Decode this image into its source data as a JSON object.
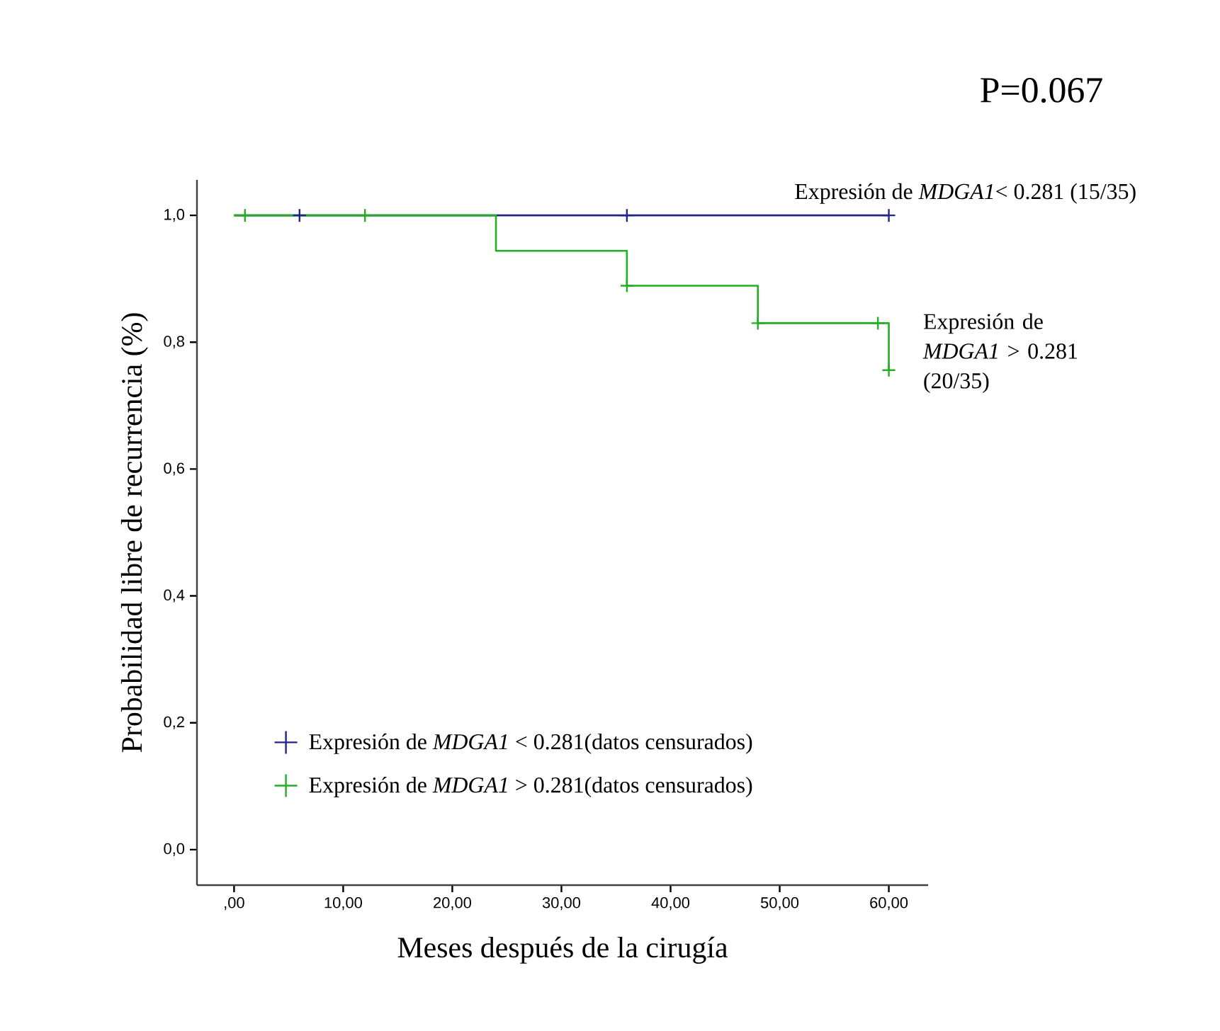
{
  "chart_data": {
    "type": "step",
    "title": "P=0.067",
    "xlabel": "Meses después de la cirugía",
    "ylabel": "Probabilidad libre de recurrencia (%)",
    "xlim": [
      -3.4,
      63.6
    ],
    "ylim": [
      -0.056,
      1.056
    ],
    "xticks": [
      {
        "value": 0,
        "label": ",00"
      },
      {
        "value": 10,
        "label": "10,00"
      },
      {
        "value": 20,
        "label": "20,00"
      },
      {
        "value": 30,
        "label": "30,00"
      },
      {
        "value": 40,
        "label": "40,00"
      },
      {
        "value": 50,
        "label": "50,00"
      },
      {
        "value": 60,
        "label": "60,00"
      }
    ],
    "yticks": [
      {
        "value": 0,
        "label": "0,0"
      },
      {
        "value": 0.2,
        "label": "0,2"
      },
      {
        "value": 0.4,
        "label": "0,4"
      },
      {
        "value": 0.6,
        "label": "0,6"
      },
      {
        "value": 0.8,
        "label": "0,8"
      },
      {
        "value": 1,
        "label": "1,0"
      }
    ],
    "legend": "bottom left",
    "line_style": "solid",
    "series": [
      {
        "name": "Expresión de *MDGA1*< 0.281 (15/35)",
        "color": "#23238e",
        "x": [
          0,
          60
        ],
        "values": [
          1,
          1
        ]
      },
      {
        "name": "Expresión de *MDGA1* > 0.281 (20/35)",
        "color": "#22b022",
        "x": [
          0,
          24,
          36,
          48,
          60
        ],
        "values": [
          1,
          0.944,
          0.889,
          0.83,
          0.756
        ]
      },
      {
        "type": "scatter",
        "marker": "cross",
        "name": "Expresión de *MDGA1* < 0.281(datos censurados)",
        "color": "#23238e",
        "x": [
          6,
          36,
          60
        ],
        "values": [
          1,
          1,
          1
        ]
      },
      {
        "type": "scatter",
        "marker": "cross",
        "name": "Expresión de *MDGA1* > 0.281(datos censurados)",
        "color": "#22b022",
        "x": [
          1,
          12,
          36,
          48,
          59,
          60
        ],
        "values": [
          1,
          1,
          0.889,
          0.83,
          0.83,
          0.756
        ]
      }
    ]
  }
}
